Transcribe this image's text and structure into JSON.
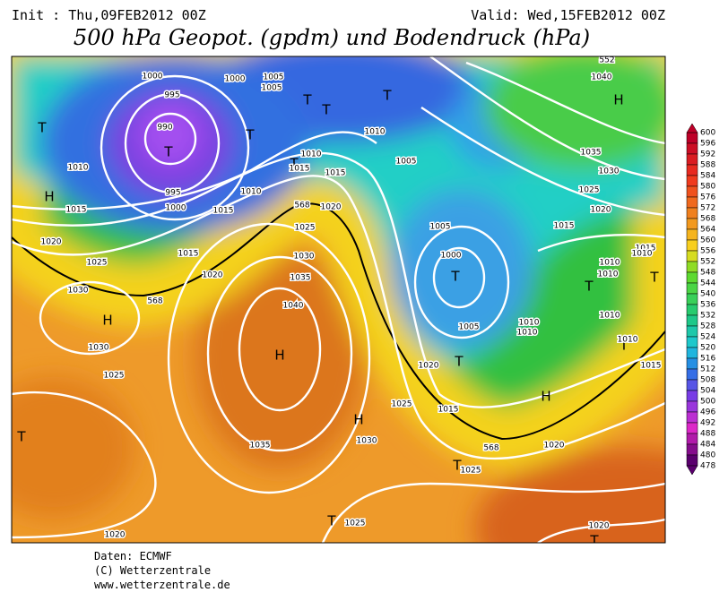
{
  "header": {
    "init": "Init : Thu,09FEB2012 00Z",
    "valid": "Valid: Wed,15FEB2012 00Z",
    "title": "500 hPa Geopot. (gpdm) und Bodendruck (hPa)"
  },
  "map_labels": [
    "T",
    "H",
    "T",
    "1000",
    "995",
    "990",
    "995",
    "1000",
    "1000",
    "1005",
    "1005",
    "T",
    "T",
    "T",
    "T",
    "1010",
    "1010",
    "1015",
    "1020",
    "1025",
    "1030",
    "H",
    "1030",
    "1010",
    "T",
    "1015",
    "1015",
    "1010",
    "1015",
    "568",
    "1020",
    "1025",
    "1015",
    "1020",
    "568",
    "1030",
    "1035",
    "1040",
    "H",
    "1025",
    "T",
    "1035",
    "H",
    "1030",
    "1025",
    "1020",
    "T",
    "1025",
    "T",
    "1025",
    "568",
    "1020",
    "1015",
    "1020",
    "T",
    "1005",
    "T",
    "1000",
    "1005",
    "1005",
    "1010",
    "1010",
    "H",
    "T",
    "1010",
    "1015",
    "1010",
    "1010",
    "1010",
    "T",
    "1015",
    "1010",
    "T",
    "1015",
    "1020",
    "1025",
    "1030",
    "1035",
    "H",
    "1040",
    "1020",
    "T",
    "552"
  ],
  "colorbar": {
    "ticks": [
      600,
      596,
      592,
      588,
      584,
      580,
      576,
      572,
      568,
      564,
      560,
      556,
      552,
      548,
      544,
      540,
      536,
      532,
      528,
      524,
      520,
      516,
      512,
      508,
      504,
      500,
      496,
      492,
      488,
      484,
      480,
      478
    ]
  },
  "footer": [
    "Daten: ECMWF",
    "(C) Wetterzentrale",
    "www.wetterzentrale.de"
  ]
}
